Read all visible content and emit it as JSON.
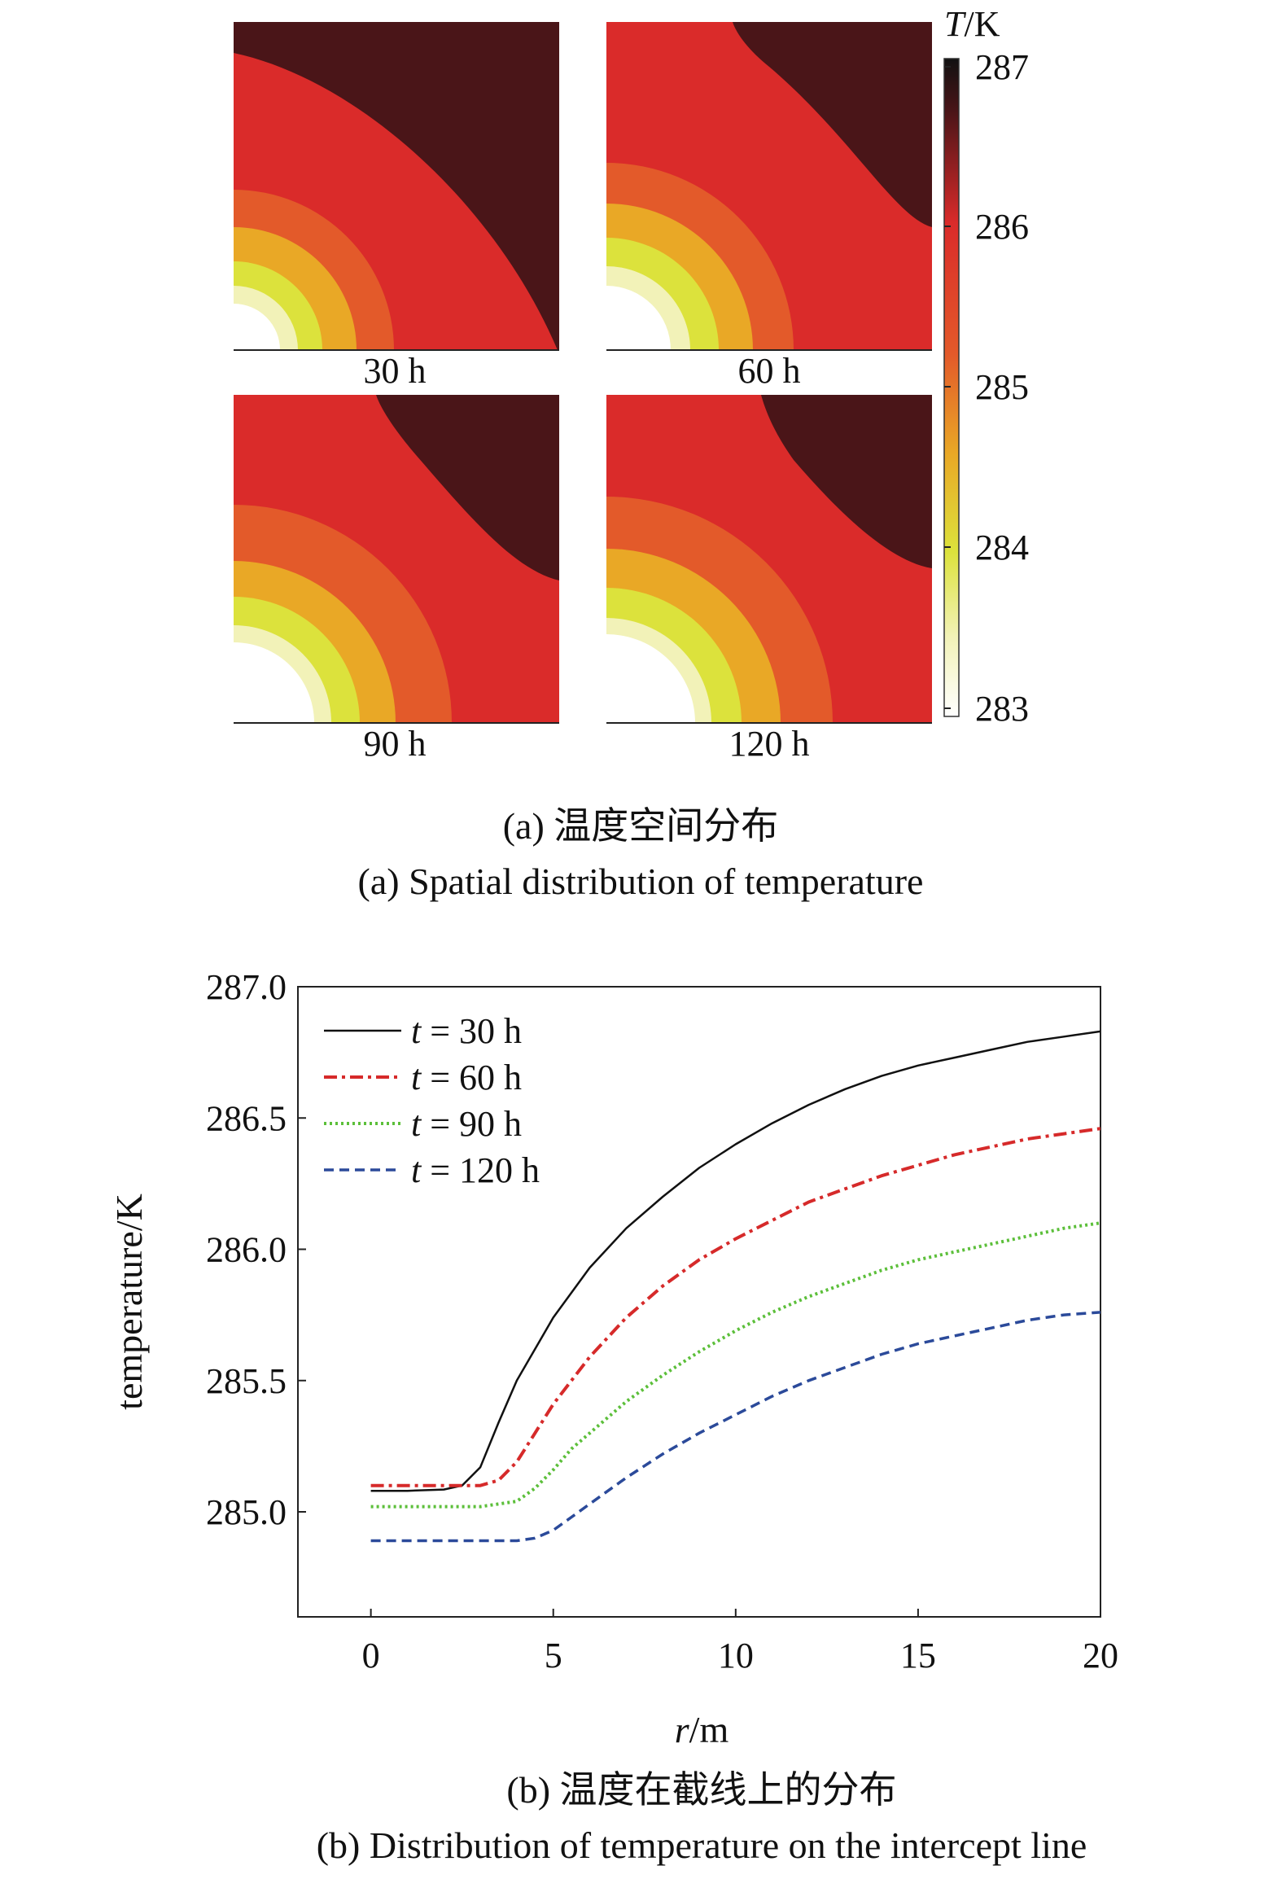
{
  "panel_a": {
    "colorbar": {
      "title_italic": "T",
      "title_unit": "/K",
      "ticks": [
        "287",
        "286",
        "285",
        "284",
        "283"
      ]
    },
    "maps": [
      {
        "label": "30 h"
      },
      {
        "label": "60 h"
      },
      {
        "label": "90 h"
      },
      {
        "label": "120 h"
      }
    ],
    "caption_cn": "(a) 温度空间分布",
    "caption_en": "(a) Spatial distribution of temperature",
    "colors": {
      "levels": [
        "#ffffff",
        "#f2f2b8",
        "#dce23c",
        "#e9a826",
        "#e35a2a",
        "#da2b2a",
        "#4a1518"
      ]
    }
  },
  "panel_b": {
    "caption_cn": "(b) 温度在截线上的分布",
    "caption_en": "(b) Distribution of temperature on the intercept line"
  },
  "chart_data": {
    "type": "line",
    "xlabel_italic": "r",
    "xlabel_unit": "/m",
    "ylabel": "temperature/K",
    "xlim": [
      -2,
      20
    ],
    "ylim": [
      284.6,
      287.0
    ],
    "xticks": [
      "0",
      "5",
      "10",
      "15",
      "20"
    ],
    "yticks": [
      "285.0",
      "285.5",
      "286.0",
      "286.5",
      "287.0"
    ],
    "legend_position": "top-left",
    "series": [
      {
        "name_italic": "t",
        "name_rest": " = 30 h",
        "color": "#111111",
        "dash": "solid",
        "x": [
          0,
          1,
          2,
          2.5,
          3,
          3.5,
          4,
          5,
          6,
          7,
          8,
          9,
          10,
          11,
          12,
          13,
          14,
          15,
          16,
          17,
          18,
          19,
          20
        ],
        "y": [
          285.08,
          285.08,
          285.085,
          285.1,
          285.17,
          285.34,
          285.5,
          285.74,
          285.93,
          286.08,
          286.2,
          286.31,
          286.4,
          286.48,
          286.55,
          286.61,
          286.66,
          286.7,
          286.73,
          286.76,
          286.79,
          286.81,
          286.83
        ]
      },
      {
        "name_italic": "t",
        "name_rest": " = 60 h",
        "color": "#d62a2a",
        "dash": "dashdot",
        "x": [
          0,
          1,
          2,
          3,
          3.5,
          4,
          4.5,
          5,
          6,
          7,
          8,
          9,
          10,
          11,
          12,
          13,
          14,
          15,
          16,
          17,
          18,
          19,
          20
        ],
        "y": [
          285.1,
          285.1,
          285.1,
          285.1,
          285.12,
          285.19,
          285.3,
          285.41,
          285.59,
          285.74,
          285.86,
          285.96,
          286.04,
          286.11,
          286.18,
          286.23,
          286.28,
          286.32,
          286.36,
          286.39,
          286.42,
          286.44,
          286.46
        ]
      },
      {
        "name_italic": "t",
        "name_rest": " = 90 h",
        "color": "#5cbf3a",
        "dash": "dotted",
        "x": [
          0,
          1,
          2,
          3,
          4,
          4.5,
          5,
          5.5,
          6,
          7,
          8,
          9,
          10,
          11,
          12,
          13,
          14,
          15,
          16,
          17,
          18,
          19,
          20
        ],
        "y": [
          285.02,
          285.02,
          285.02,
          285.02,
          285.04,
          285.09,
          285.16,
          285.24,
          285.3,
          285.42,
          285.52,
          285.61,
          285.69,
          285.76,
          285.82,
          285.87,
          285.92,
          285.96,
          285.99,
          286.02,
          286.05,
          286.08,
          286.1
        ]
      },
      {
        "name_italic": "t",
        "name_rest": " = 120 h",
        "color": "#2b4a9a",
        "dash": "dashed",
        "x": [
          0,
          1,
          2,
          3,
          4,
          4.5,
          5,
          5.5,
          6,
          7,
          8,
          9,
          10,
          11,
          12,
          13,
          14,
          15,
          16,
          17,
          18,
          19,
          20
        ],
        "y": [
          284.89,
          284.89,
          284.89,
          284.89,
          284.89,
          284.9,
          284.93,
          284.98,
          285.03,
          285.13,
          285.22,
          285.3,
          285.37,
          285.44,
          285.5,
          285.55,
          285.6,
          285.64,
          285.67,
          285.7,
          285.73,
          285.75,
          285.76
        ]
      }
    ]
  }
}
